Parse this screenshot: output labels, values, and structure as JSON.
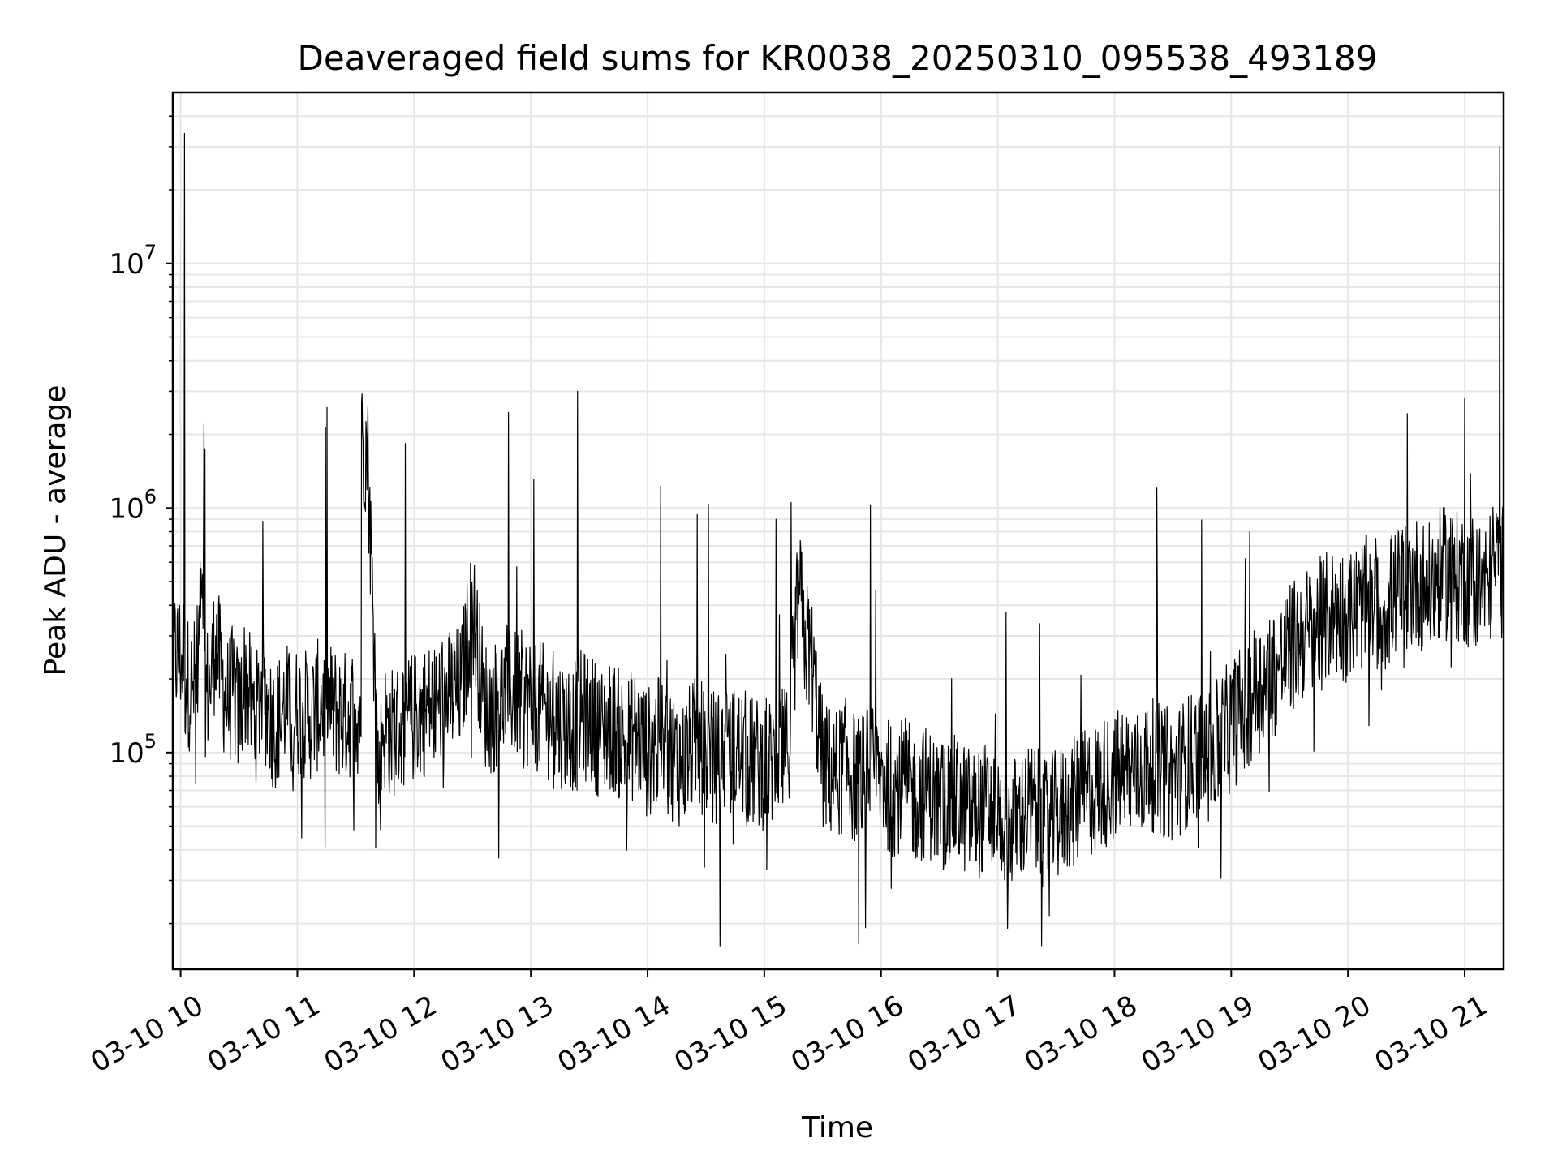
{
  "chart_data": {
    "type": "line",
    "title": "Deaveraged field sums for KR0038_20250310_095538_493189",
    "xlabel": "Time",
    "ylabel": "Peak ADU - average",
    "yscale": "log",
    "xlim": [
      "03-10 09:56",
      "03-10 21:20"
    ],
    "ylim": [
      13000,
      50000000
    ],
    "grid": true,
    "line_color": "#000000",
    "grid_color": "#e6e6e6",
    "x_ticks": [
      {
        "value": "03-10 10:00",
        "label": "03-10 10"
      },
      {
        "value": "03-10 11:00",
        "label": "03-10 11"
      },
      {
        "value": "03-10 12:00",
        "label": "03-10 12"
      },
      {
        "value": "03-10 13:00",
        "label": "03-10 13"
      },
      {
        "value": "03-10 14:00",
        "label": "03-10 14"
      },
      {
        "value": "03-10 15:00",
        "label": "03-10 15"
      },
      {
        "value": "03-10 16:00",
        "label": "03-10 16"
      },
      {
        "value": "03-10 17:00",
        "label": "03-10 17"
      },
      {
        "value": "03-10 18:00",
        "label": "03-10 18"
      },
      {
        "value": "03-10 19:00",
        "label": "03-10 19"
      },
      {
        "value": "03-10 20:00",
        "label": "03-10 20"
      },
      {
        "value": "03-10 21:00",
        "label": "03-10 21"
      }
    ],
    "y_ticks": [
      {
        "value": 100000,
        "base": "10",
        "exp": "5"
      },
      {
        "value": 1000000,
        "base": "10",
        "exp": "6"
      },
      {
        "value": 10000000,
        "base": "10",
        "exp": "7"
      }
    ],
    "series": [
      {
        "x": [
          "03-10 09:56",
          "03-10 10:02",
          "10:03",
          "10:06",
          "10:09",
          "10:10",
          "10:12",
          "10:15",
          "10:18",
          "10:21",
          "10:24",
          "10:27",
          "10:30",
          "10:33",
          "10:36",
          "10:39",
          "10:42",
          "10:45",
          "10:48",
          "10:51",
          "10:54",
          "10:57",
          "11:00",
          "11:06",
          "11:12",
          "11:18",
          "11:24",
          "11:30",
          "11:33",
          "11:36",
          "11:40",
          "11:42",
          "11:44",
          "11:48",
          "11:54",
          "12:00",
          "12:06",
          "12:12",
          "12:18",
          "12:24",
          "12:30",
          "12:36",
          "12:40",
          "12:45",
          "12:48",
          "12:54",
          "13:00",
          "13:06",
          "13:12",
          "13:18",
          "13:24",
          "13:30",
          "13:36",
          "13:42",
          "13:48",
          "13:54",
          "14:00",
          "14:06",
          "14:12",
          "14:18",
          "14:24",
          "14:30",
          "14:36",
          "14:42",
          "14:48",
          "14:54",
          "15:00",
          "15:06",
          "15:12",
          "15:18",
          "15:20",
          "15:24",
          "15:30",
          "15:36",
          "15:42",
          "15:48",
          "15:54",
          "16:00",
          "16:06",
          "16:12",
          "16:18",
          "16:24",
          "16:30",
          "16:36",
          "16:42",
          "16:48",
          "16:54",
          "17:00",
          "17:06",
          "17:12",
          "17:18",
          "17:24",
          "17:30",
          "17:36",
          "17:42",
          "17:48",
          "17:54",
          "18:00",
          "18:06",
          "18:12",
          "18:18",
          "18:24",
          "18:30",
          "18:36",
          "18:42",
          "18:48",
          "18:54",
          "19:00",
          "19:06",
          "19:12",
          "19:18",
          "19:24",
          "19:30",
          "19:36",
          "19:42",
          "19:48",
          "19:54",
          "20:00",
          "20:06",
          "20:12",
          "20:18",
          "20:24",
          "20:30",
          "20:36",
          "20:42",
          "20:48",
          "20:54",
          "21:00",
          "21:06",
          "21:12",
          "21:15",
          "21:18",
          "21:20"
        ],
        "y": [
          250000,
          34000000,
          200000,
          180000,
          220000,
          600000,
          2200000,
          180000,
          300000,
          200000,
          160000,
          180000,
          140000,
          200000,
          160000,
          140000,
          180000,
          150000,
          130000,
          140000,
          160000,
          130000,
          150000,
          140000,
          160000,
          150000,
          140000,
          150000,
          2700000,
          1800000,
          200000,
          70000,
          130000,
          120000,
          130000,
          140000,
          150000,
          160000,
          170000,
          180000,
          400000,
          160000,
          150000,
          170000,
          180000,
          170000,
          160000,
          150000,
          140000,
          130000,
          3000000,
          140000,
          120000,
          130000,
          110000,
          120000,
          100000,
          110000,
          100000,
          90000,
          110000,
          100000,
          95000,
          100000,
          100000,
          90000,
          90000,
          900000,
          100000,
          500000,
          300000,
          250000,
          90000,
          80000,
          90000,
          75000,
          85000,
          80000,
          70000,
          75000,
          65000,
          70000,
          60000,
          65000,
          60000,
          55000,
          60000,
          55000,
          50000,
          55000,
          60000,
          50000,
          55000,
          60000,
          65000,
          70000,
          75000,
          80000,
          85000,
          80000,
          90000,
          85000,
          80000,
          90000,
          100000,
          95000,
          110000,
          130000,
          150000,
          180000,
          200000,
          220000,
          260000,
          300000,
          320000,
          350000,
          380000,
          360000,
          400000,
          420000,
          380000,
          450000,
          480000,
          500000,
          460000,
          550000,
          520000,
          2800000,
          500000,
          480000,
          600000,
          30000000,
          550000
        ]
      }
    ]
  }
}
